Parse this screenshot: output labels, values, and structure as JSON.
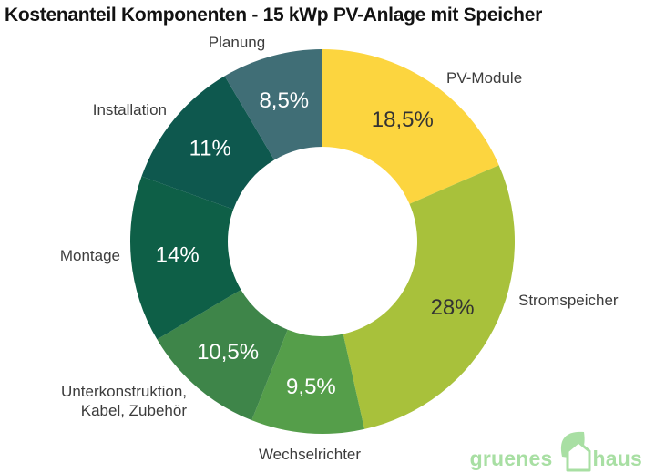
{
  "title": "Kostenanteil Komponenten - 15 kWp PV-Anlage mit Speicher",
  "chart_data": {
    "type": "pie",
    "subtype": "donut",
    "start_angle_deg": 0,
    "direction": "clockwise",
    "unit": "%",
    "segments": [
      {
        "label": "PV-Module",
        "value": 18.5,
        "display": "18,5%",
        "color": "#FCD53F",
        "value_text_color": "#333333"
      },
      {
        "label": "Stromspeicher",
        "value": 28,
        "display": "28%",
        "color": "#A8C13B",
        "value_text_color": "#333333"
      },
      {
        "label": "Wechselrichter",
        "value": 9.5,
        "display": "9,5%",
        "color": "#559E4A",
        "value_text_color": "#FFFFFF"
      },
      {
        "label": "Unterkonstruktion, Kabel, Zubehör",
        "value": 10.5,
        "display": "10,5%",
        "color": "#3E8549",
        "value_text_color": "#FFFFFF"
      },
      {
        "label": "Montage",
        "value": 14,
        "display": "14%",
        "color": "#0E5F47",
        "value_text_color": "#FFFFFF"
      },
      {
        "label": "Installation",
        "value": 11,
        "display": "11%",
        "color": "#0E584E",
        "value_text_color": "#FFFFFF"
      },
      {
        "label": "Planung",
        "value": 8.5,
        "display": "8,5%",
        "color": "#406E76",
        "value_text_color": "#FFFFFF"
      }
    ]
  },
  "logo": {
    "word1": "gruenes",
    "word2": "haus",
    "color": "#A8DFA3",
    "icon": "leaf-house-icon"
  }
}
